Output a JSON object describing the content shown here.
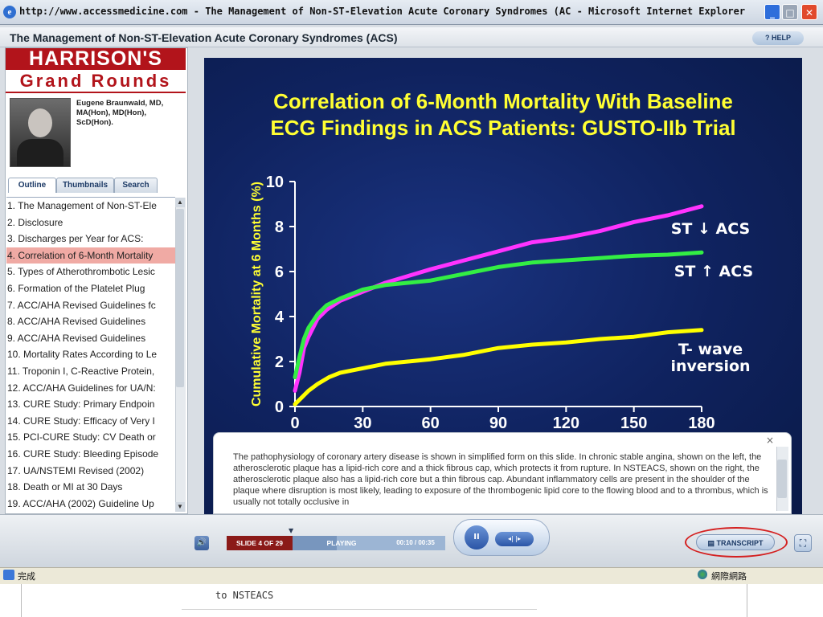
{
  "window": {
    "title": "http://www.accessmedicine.com - The Management of Non-ST-Elevation Acute Coronary Syndromes (AC - Microsoft Internet Explorer",
    "buttons": [
      "_",
      "□",
      "✕"
    ]
  },
  "app": {
    "title": "The Management of Non-ST-Elevation Acute Coronary Syndromes (ACS)",
    "help_label": "? HELP"
  },
  "brand": {
    "line1": "HARRISON'S",
    "line2": "Grand Rounds"
  },
  "presenter": {
    "name": "Eugene Braunwald, MD, MA(Hon), MD(Hon), ScD(Hon)."
  },
  "tabs": [
    {
      "label": "Outline",
      "active": true
    },
    {
      "label": "Thumbnails",
      "active": false
    },
    {
      "label": "Search",
      "active": false
    }
  ],
  "outline": [
    "1. The Management of Non-ST-Ele",
    "2. Disclosure",
    "3. Discharges per Year for ACS:",
    "4. Correlation of 6-Month Mortality",
    "5. Types of Atherothrombotic Lesic",
    "6. Formation of the Platelet Plug",
    "7. ACC/AHA Revised Guidelines fc",
    "8. ACC/AHA Revised Guidelines",
    "9. ACC/AHA Revised Guidelines",
    "10. Mortality Rates According to Le",
    "11. Troponin I, C-Reactive Protein,",
    "12. ACC/AHA Guidelines for UA/N:",
    "13. CURE Study: Primary Endpoin",
    "14. CURE Study: Efficacy of Very I",
    "15. PCI-CURE Study: CV Death or",
    "16. CURE Study: Bleeding Episode",
    "17. UA/NSTEMI Revised (2002)",
    "18. Death  or MI at 30 Days",
    "19. ACC/AHA (2002) Guideline Up"
  ],
  "outline_selected_index": 3,
  "slide": {
    "title": "Correlation of 6-Month Mortality With Baseline\nECG Findings in ACS Patients: GUSTO-IIb Trial"
  },
  "chart_data": {
    "type": "line",
    "title": "Correlation of 6-Month Mortality With Baseline ECG Findings in ACS Patients: GUSTO-IIb Trial",
    "xlabel": "",
    "ylabel": "Cumulative Mortality at 6 Months (%)",
    "xlim": [
      0,
      180
    ],
    "ylim": [
      0,
      10
    ],
    "xticks": [
      0,
      30,
      60,
      90,
      120,
      150,
      180
    ],
    "yticks": [
      0,
      2,
      4,
      6,
      8,
      10
    ],
    "grid": false,
    "legend": "inline labels at right",
    "series": [
      {
        "name": "ST ↓ ACS",
        "color": "#ff33ff",
        "x": [
          0,
          2,
          4,
          6,
          8,
          10,
          14,
          20,
          30,
          40,
          50,
          60,
          75,
          90,
          105,
          120,
          135,
          150,
          165,
          180
        ],
        "y": [
          0.7,
          1.5,
          2.6,
          3.1,
          3.5,
          3.9,
          4.3,
          4.7,
          5.1,
          5.5,
          5.8,
          6.1,
          6.5,
          6.9,
          7.3,
          7.5,
          7.8,
          8.2,
          8.5,
          8.9
        ]
      },
      {
        "name": "ST ↑ ACS",
        "color": "#33ee44",
        "x": [
          0,
          2,
          4,
          6,
          8,
          10,
          14,
          20,
          30,
          40,
          50,
          60,
          75,
          90,
          105,
          120,
          135,
          150,
          165,
          180
        ],
        "y": [
          1.3,
          2.2,
          3.0,
          3.5,
          3.8,
          4.1,
          4.5,
          4.8,
          5.2,
          5.4,
          5.5,
          5.6,
          5.9,
          6.2,
          6.4,
          6.5,
          6.6,
          6.7,
          6.75,
          6.85
        ]
      },
      {
        "name": "T- wave inversion",
        "color": "#ffff00",
        "x": [
          0,
          3,
          6,
          10,
          15,
          20,
          30,
          40,
          50,
          60,
          75,
          90,
          105,
          120,
          135,
          150,
          165,
          180
        ],
        "y": [
          0.1,
          0.4,
          0.7,
          1.0,
          1.3,
          1.5,
          1.7,
          1.9,
          2.0,
          2.1,
          2.3,
          2.6,
          2.75,
          2.85,
          3.0,
          3.1,
          3.3,
          3.4
        ]
      }
    ]
  },
  "transcript": {
    "close_label": "×",
    "text": "The pathophysiology of coronary artery disease is shown in simplified form on this slide.  In chronic stable angina, shown on the left, the atherosclerotic plaque has a lipid-rich core and a thick fibrous cap, which protects it from rupture.  In NSTEACS, shown on the right, the atherosclerotic plaque also has a lipid-rich core but a thin fibrous cap.  Abundant inflammatory cells are present in the shoulder of the plaque where disruption is most likely, leading to exposure of the thrombogenic lipid core to the flowing blood and to a thrombus, which is usually not totally occlusive in"
  },
  "player": {
    "slide_counter": "SLIDE 4 OF 29",
    "status": "PLAYING",
    "time": "00:10 / 00:35",
    "progress": 0.29,
    "transcript_label": "TRANSCRIPT",
    "pause_icon": "II",
    "nav_icon": "◂|  |▸"
  },
  "statusbar": {
    "left": "完成",
    "zone": "網際網路"
  },
  "background_page": {
    "text": "to NSTEACS"
  }
}
